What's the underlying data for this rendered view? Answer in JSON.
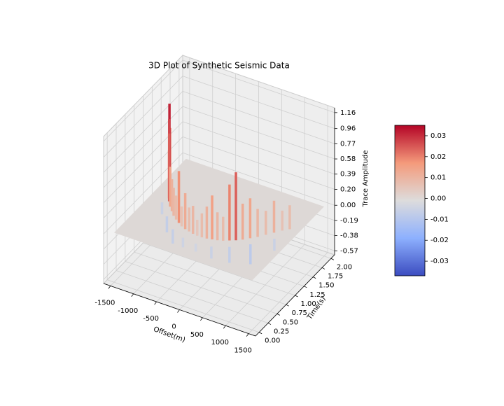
{
  "chart_data": {
    "type": "surface3d",
    "title": "3D Plot of Synthetic Seismic Data",
    "xlabel": "Offset(m)",
    "ylabel": "Time(s)",
    "zlabel": "Trace Amplitude",
    "xlim": [
      -1650,
      1650
    ],
    "ylim": [
      -0.1,
      2.1
    ],
    "zlim": [
      -0.62,
      1.22
    ],
    "xticks": [
      -1500,
      -1000,
      -500,
      0,
      500,
      1000,
      1500
    ],
    "yticks": [
      {
        "value": 0,
        "label": "0.00"
      },
      {
        "value": 0.25,
        "label": "0.25"
      },
      {
        "value": 0.5,
        "label": "0.50"
      },
      {
        "value": 0.75,
        "label": "0.75"
      },
      {
        "value": 1,
        "label": "1.00"
      },
      {
        "value": 1.25,
        "label": "1.25"
      },
      {
        "value": 1.5,
        "label": "1.50"
      },
      {
        "value": 1.75,
        "label": "1.75"
      },
      {
        "value": 2,
        "label": "2.00"
      }
    ],
    "zticks": [
      -0.57,
      -0.38,
      -0.19,
      {
        "value": 0,
        "label": "0.00"
      },
      {
        "value": 0.2,
        "label": "0.20"
      },
      0.39,
      0.58,
      0.77,
      0.96,
      1.16
    ],
    "grid": true,
    "colormap": "coolwarm",
    "clim": [
      -0.037,
      0.035
    ],
    "cticks": [
      -0.03,
      -0.02,
      -0.01,
      {
        "value": 0,
        "label": "0.00"
      },
      0.01,
      0.02,
      0.03
    ],
    "spikes": {
      "x": [
        -1300,
        -1250,
        -1200,
        -1150,
        -1100,
        -1000,
        -900,
        -800,
        -700,
        -600,
        -500,
        -400,
        -300,
        -200,
        -100,
        0,
        100,
        200,
        300,
        400,
        500,
        600,
        700,
        800,
        900,
        1000,
        1100,
        1200,
        1300,
        -1200,
        -900,
        -600,
        -300,
        0,
        300,
        600,
        900,
        1200
      ],
      "y": [
        1.3,
        1.22,
        1.15,
        1.08,
        1.02,
        0.92,
        0.84,
        0.76,
        0.7,
        0.65,
        0.6,
        0.57,
        0.55,
        0.53,
        0.52,
        0.52,
        0.53,
        0.55,
        0.57,
        0.6,
        0.65,
        0.7,
        0.76,
        0.84,
        0.92,
        1.02,
        1.12,
        1.22,
        1.3,
        0.95,
        0.7,
        0.48,
        0.38,
        0.35,
        0.4,
        0.52,
        0.72,
        1.0
      ],
      "values": [
        0.75,
        1.1,
        0.95,
        0.6,
        0.85,
        0.5,
        0.4,
        0.35,
        0.3,
        0.65,
        0.25,
        0.45,
        0.3,
        0.35,
        0.2,
        0.3,
        0.4,
        0.55,
        0.35,
        0.3,
        0.7,
        0.85,
        0.45,
        0.5,
        0.35,
        0.3,
        0.4,
        0.25,
        0.3,
        -0.15,
        -0.2,
        -0.18,
        -0.12,
        -0.1,
        -0.15,
        -0.2,
        -0.25,
        -0.15
      ]
    }
  }
}
